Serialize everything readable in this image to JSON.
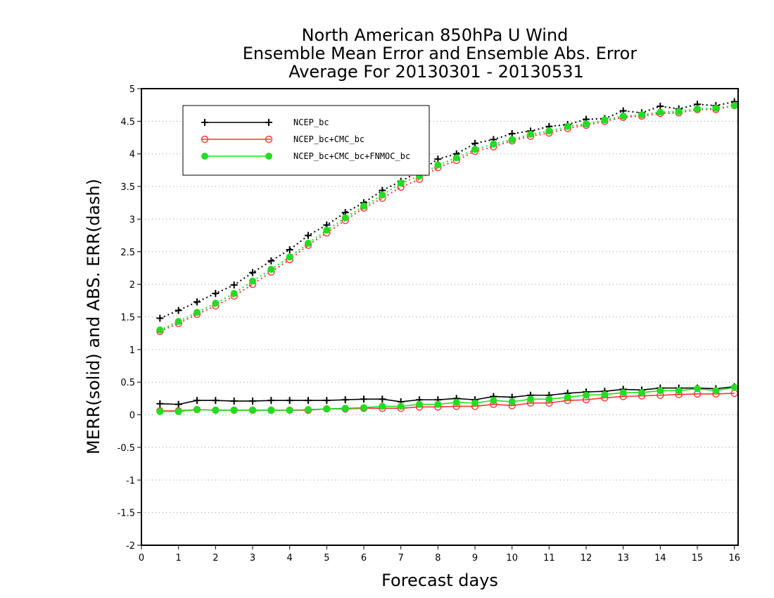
{
  "chart_data": {
    "type": "line",
    "title_lines": [
      "North American 850hPa U Wind",
      "Ensemble Mean Error and Ensemble Abs. Error",
      "Average For 20130301 - 20130531"
    ],
    "xlabel": "Forecast days",
    "ylabel": "MERR(solid) and ABS. ERR(dash)",
    "xlim": [
      0,
      16.1
    ],
    "ylim": [
      -2,
      5
    ],
    "x_ticks": [
      0,
      1,
      2,
      3,
      4,
      5,
      6,
      7,
      8,
      9,
      10,
      11,
      12,
      13,
      14,
      15,
      16
    ],
    "y_ticks": [
      -2,
      -1.5,
      -1,
      -0.5,
      0,
      0.5,
      1,
      1.5,
      2,
      2.5,
      3,
      3.5,
      4,
      4.5,
      5
    ],
    "grid": "horizontal dotted",
    "legend_position": "top-left",
    "x": [
      0.5,
      1,
      1.5,
      2,
      2.5,
      3,
      3.5,
      4,
      4.5,
      5,
      5.5,
      6,
      6.5,
      7,
      7.5,
      8,
      8.5,
      9,
      9.5,
      10,
      10.5,
      11,
      11.5,
      12,
      12.5,
      13,
      13.5,
      14,
      14.5,
      15,
      15.5,
      16
    ],
    "series": [
      {
        "name": "NCEP_bc",
        "color": "#000000",
        "marker": "plus",
        "merr": [
          0.17,
          0.16,
          0.22,
          0.22,
          0.21,
          0.21,
          0.22,
          0.22,
          0.22,
          0.22,
          0.23,
          0.24,
          0.24,
          0.2,
          0.23,
          0.23,
          0.25,
          0.23,
          0.28,
          0.27,
          0.3,
          0.3,
          0.33,
          0.35,
          0.36,
          0.39,
          0.38,
          0.41,
          0.41,
          0.41,
          0.4,
          0.43
        ],
        "abs_err": [
          1.48,
          1.6,
          1.73,
          1.86,
          1.99,
          2.18,
          2.36,
          2.53,
          2.75,
          2.91,
          3.1,
          3.25,
          3.44,
          3.58,
          3.73,
          3.92,
          4.0,
          4.16,
          4.22,
          4.31,
          4.35,
          4.42,
          4.45,
          4.53,
          4.54,
          4.66,
          4.63,
          4.73,
          4.69,
          4.76,
          4.74,
          4.8
        ]
      },
      {
        "name": "NCEP_bc+CMC_bc",
        "color": "#ff3333",
        "marker": "circle",
        "merr": [
          0.06,
          0.06,
          0.08,
          0.07,
          0.07,
          0.07,
          0.07,
          0.07,
          0.07,
          0.09,
          0.09,
          0.1,
          0.1,
          0.1,
          0.12,
          0.12,
          0.13,
          0.13,
          0.16,
          0.14,
          0.18,
          0.18,
          0.22,
          0.23,
          0.26,
          0.28,
          0.29,
          0.3,
          0.31,
          0.32,
          0.32,
          0.33
        ],
        "abs_err": [
          1.28,
          1.4,
          1.54,
          1.67,
          1.82,
          2.0,
          2.19,
          2.38,
          2.6,
          2.79,
          2.98,
          3.17,
          3.32,
          3.49,
          3.61,
          3.79,
          3.9,
          4.04,
          4.11,
          4.2,
          4.27,
          4.32,
          4.39,
          4.44,
          4.5,
          4.56,
          4.58,
          4.62,
          4.63,
          4.68,
          4.68,
          4.74
        ]
      },
      {
        "name": "NCEP_bc+CMC_bc+FNMOC_bc",
        "color": "#22dd22",
        "marker": "filled-circle",
        "merr": [
          0.05,
          0.05,
          0.08,
          0.07,
          0.07,
          0.07,
          0.07,
          0.07,
          0.08,
          0.09,
          0.1,
          0.11,
          0.13,
          0.13,
          0.16,
          0.16,
          0.19,
          0.18,
          0.22,
          0.2,
          0.24,
          0.24,
          0.27,
          0.3,
          0.31,
          0.34,
          0.34,
          0.37,
          0.37,
          0.4,
          0.37,
          0.42
        ],
        "abs_err": [
          1.3,
          1.43,
          1.57,
          1.71,
          1.86,
          2.05,
          2.23,
          2.42,
          2.63,
          2.83,
          3.02,
          3.2,
          3.37,
          3.55,
          3.66,
          3.83,
          3.94,
          4.07,
          4.15,
          4.22,
          4.3,
          4.35,
          4.42,
          4.46,
          4.52,
          4.58,
          4.6,
          4.64,
          4.65,
          4.69,
          4.7,
          4.74
        ]
      }
    ]
  }
}
